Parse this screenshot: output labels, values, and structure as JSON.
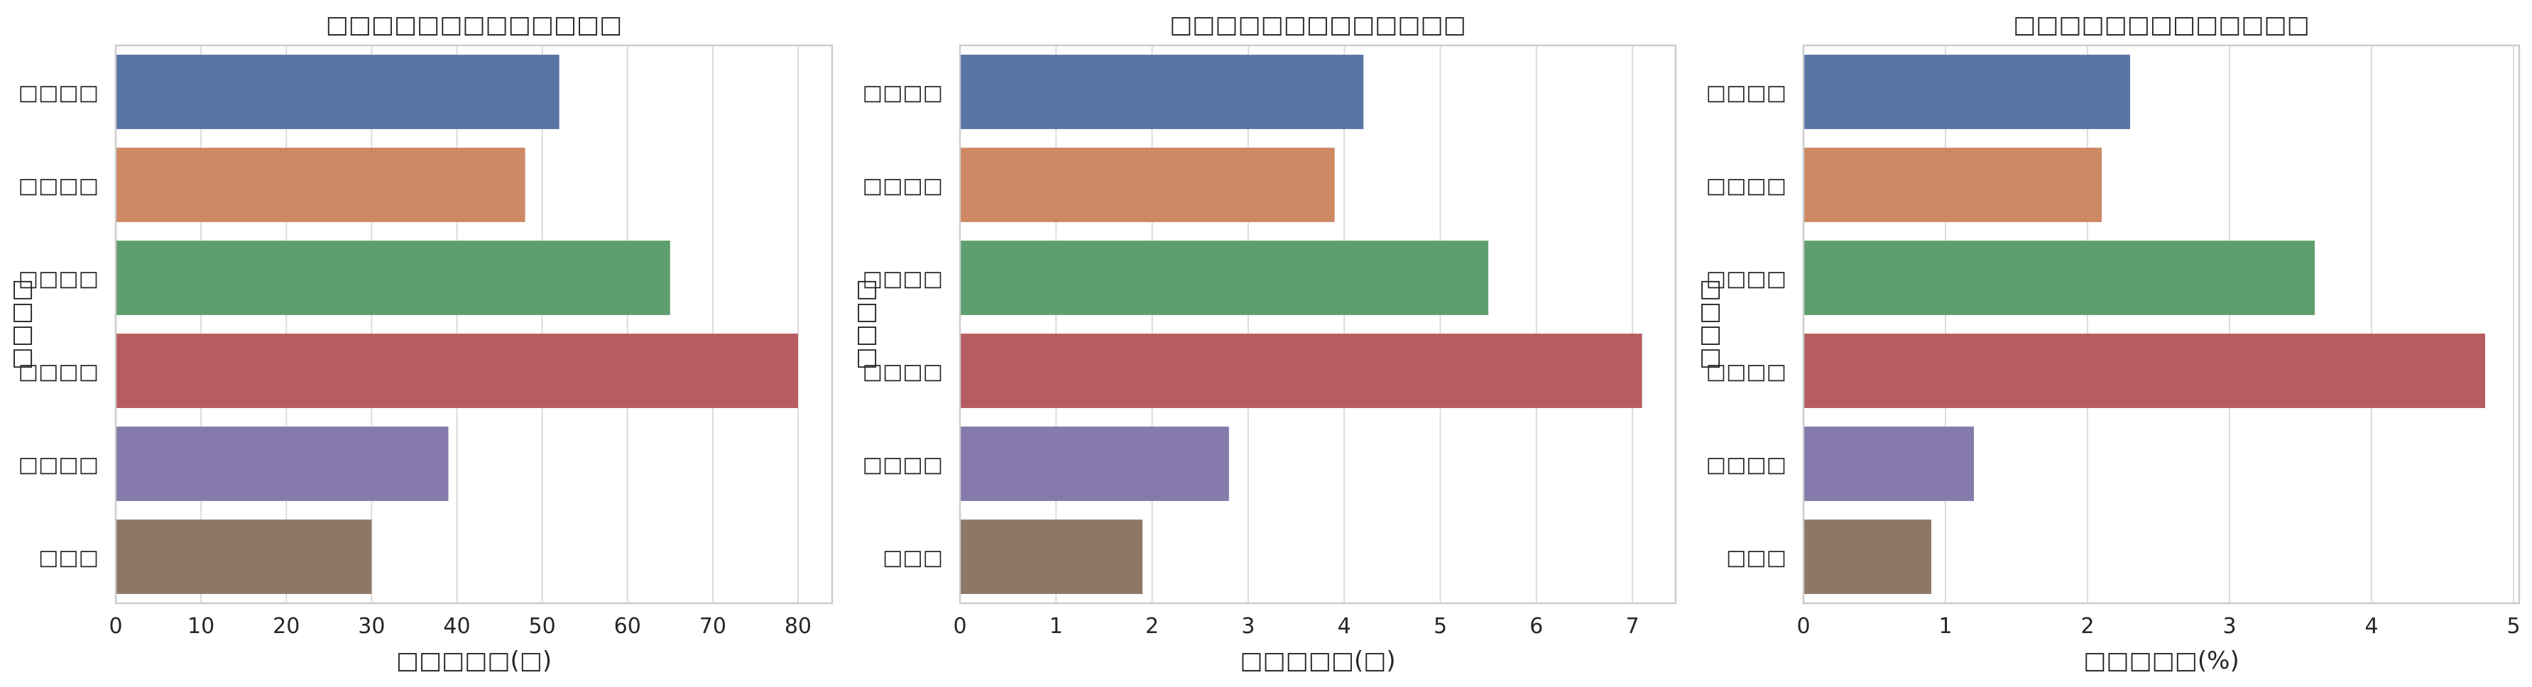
{
  "chart_data": [
    {
      "type": "bar",
      "orientation": "horizontal",
      "title": "□□□□□□□□□□□□□",
      "xlabel": "□□□□□(□)",
      "ylabel": "□□□□",
      "categories": [
        "□□□□",
        "□□□□",
        "□□□□",
        "□□□□",
        "□□□□",
        "□□□"
      ],
      "values": [
        52,
        48,
        65,
        80,
        39,
        30
      ],
      "xlim": [
        0,
        84
      ],
      "xticks": [
        0,
        10,
        20,
        30,
        40,
        50,
        60,
        70,
        80
      ],
      "grid": "vertical"
    },
    {
      "type": "bar",
      "orientation": "horizontal",
      "title": "□□□□□□□□□□□□□",
      "xlabel": "□□□□□(□)",
      "ylabel": "□□□□",
      "categories": [
        "□□□□",
        "□□□□",
        "□□□□",
        "□□□□",
        "□□□□",
        "□□□"
      ],
      "values": [
        4.2,
        3.9,
        5.5,
        7.1,
        2.8,
        1.9
      ],
      "xlim": [
        0,
        7.45
      ],
      "xticks": [
        0,
        1,
        2,
        3,
        4,
        5,
        6,
        7
      ],
      "grid": "vertical"
    },
    {
      "type": "bar",
      "orientation": "horizontal",
      "title": "□□□□□□□□□□□□□",
      "xlabel": "□□□□□(%)",
      "ylabel": "□□□□",
      "categories": [
        "□□□□",
        "□□□□",
        "□□□□",
        "□□□□",
        "□□□□",
        "□□□"
      ],
      "values": [
        2.3,
        2.1,
        3.6,
        4.8,
        1.2,
        0.9
      ],
      "xlim": [
        0,
        5.04
      ],
      "xticks": [
        0,
        1,
        2,
        3,
        4,
        5
      ],
      "grid": "vertical"
    }
  ],
  "colors": [
    "#5875a4",
    "#cc8963",
    "#5f9e6e",
    "#b55d60",
    "#857aab",
    "#8d7866"
  ]
}
